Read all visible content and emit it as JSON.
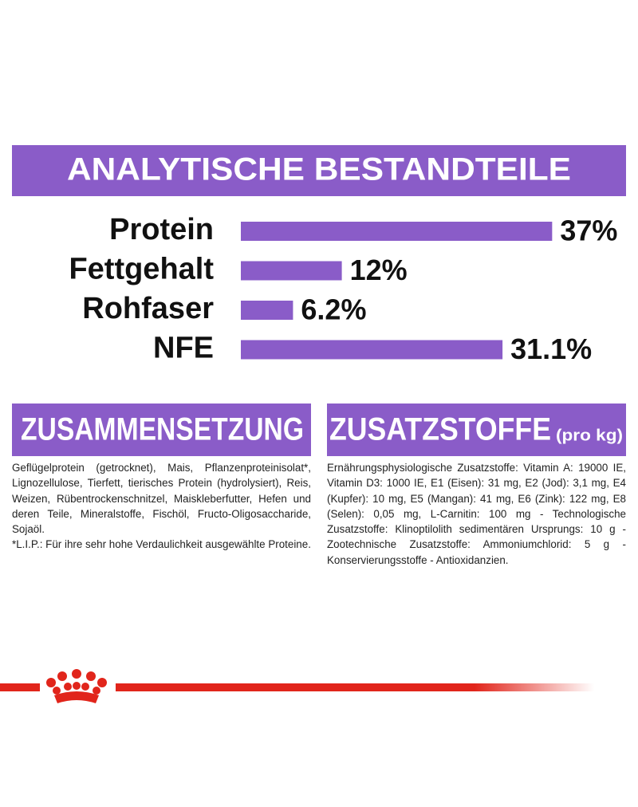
{
  "chart_data": {
    "type": "bar",
    "orientation": "horizontal",
    "title": "ANALYTISCHE BESTANDTEILE",
    "categories": [
      "Protein",
      "Fettgehalt",
      "Rohfaser",
      "NFE"
    ],
    "values": [
      37,
      12,
      6.2,
      31.1
    ],
    "value_labels": [
      "37%",
      "12%",
      "6.2%",
      "31.1%"
    ],
    "color": "#8a5cc8"
  },
  "composition": {
    "title": "ZUSAMMENSETZUNG",
    "paragraphs": [
      "Geflügelprotein (getrocknet), Mais, Pflanzenproteinisolat*, Lignozellulose, Tierfett, tierisches Protein (hydrolysiert), Reis, Weizen, Rübentrockenschnitzel, Maiskleberfutter, Hefen und deren Teile, Mineralstoffe, Fischöl, Fructo-Oligosaccharide, Sojaöl.",
      "*L.I.P.: Für ihre sehr hohe Verdaulichkeit ausgewählte Proteine."
    ]
  },
  "additives": {
    "title": "ZUSATZSTOFFE",
    "unit": "(pro kg)",
    "paragraphs": [
      "Ernährungsphysiologische Zusatzstoffe: Vitamin A: 19000 IE, Vitamin D3: 1000 IE, E1 (Eisen): 31 mg, E2 (Jod): 3,1 mg, E4 (Kupfer): 10 mg, E5 (Mangan): 41 mg, E6 (Zink): 122 mg, E8 (Selen): 0,05 mg, L-Carnitin: 100 mg - Technologische Zusatzstoffe: Klinoptilolith sedimentären Ursprungs: 10 g - Zootechnische Zusatzstoffe: Ammoniumchlorid: 5 g - Konservierungsstoffe - Antioxidanzien."
    ]
  }
}
